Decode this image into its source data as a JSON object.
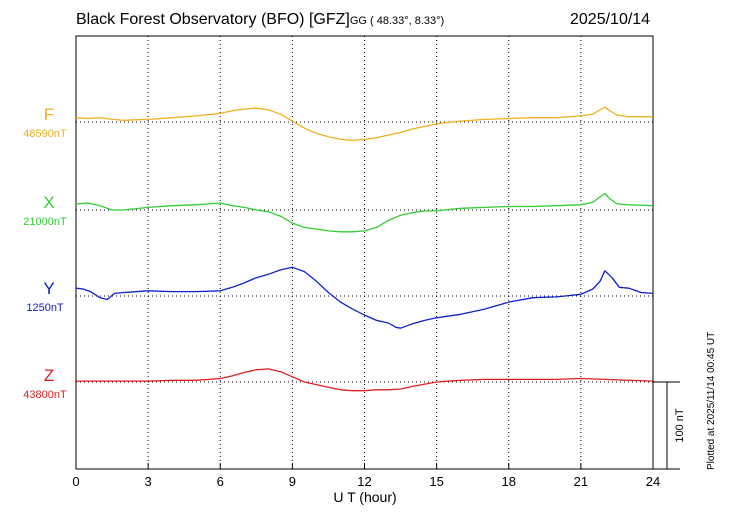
{
  "header": {
    "title": "Black Forest Observatory (BFO)  [GFZ]",
    "coords": "GG ( 48.33°,   8.33°)",
    "date": "2025/10/14"
  },
  "footer": {
    "plotted_note": "Plotted at 2025/11/14 00:45 UT",
    "scale_label": "100 nT"
  },
  "chart_data": {
    "type": "line",
    "xlabel": "U T (hour)",
    "xlim": [
      0,
      24
    ],
    "x_ticks": [
      0,
      3,
      6,
      9,
      12,
      15,
      18,
      21,
      24
    ],
    "scale_bar_nT": 100,
    "grid": true,
    "series": [
      {
        "name": "F",
        "baseline_label": "48590nT",
        "baseline": 48590,
        "color": "#f0b020",
        "x": [
          0,
          0.5,
          1,
          1.5,
          2,
          3,
          4,
          5,
          6,
          6.5,
          7,
          7.5,
          8,
          8.5,
          9,
          9.5,
          10,
          10.5,
          11,
          11.5,
          12,
          12.5,
          13,
          13.5,
          14,
          15,
          16,
          17,
          18,
          19,
          20,
          21,
          21.5,
          21.8,
          22,
          22.2,
          22.5,
          23,
          24
        ],
        "values": [
          48595,
          48594,
          48595,
          48593,
          48592,
          48593,
          48595,
          48597,
          48600,
          48603,
          48605,
          48606,
          48604,
          48599,
          48591,
          48583,
          48577,
          48573,
          48570,
          48569,
          48570,
          48572,
          48575,
          48578,
          48582,
          48588,
          48591,
          48593,
          48594,
          48595,
          48595,
          48597,
          48599,
          48604,
          48607,
          48603,
          48598,
          48596,
          48596
        ]
      },
      {
        "name": "X",
        "baseline_label": "21000nT",
        "baseline": 21000,
        "color": "#33cc33",
        "x": [
          0,
          0.5,
          1,
          1.5,
          2,
          3,
          4,
          5,
          6,
          6.5,
          7,
          7.5,
          8,
          8.5,
          9,
          9.5,
          10,
          10.5,
          11,
          11.5,
          12,
          12.5,
          13,
          13.5,
          14,
          14.5,
          15,
          16,
          17,
          18,
          19,
          20,
          21,
          21.5,
          21.8,
          22,
          22.2,
          22.5,
          23,
          24
        ],
        "values": [
          21007,
          21008,
          21005,
          21000,
          21000,
          21003,
          21005,
          21006,
          21008,
          21005,
          21003,
          21000,
          20998,
          20993,
          20985,
          20980,
          20978,
          20976,
          20975,
          20975,
          20976,
          20980,
          20988,
          20994,
          20997,
          20999,
          20999,
          21002,
          21003,
          21004,
          21004,
          21005,
          21006,
          21009,
          21015,
          21019,
          21013,
          21007,
          21006,
          21005
        ]
      },
      {
        "name": "Y",
        "baseline_label": "1250nT",
        "baseline": 1250,
        "color": "#1020cc",
        "x": [
          0,
          0.3,
          0.6,
          1,
          1.3,
          1.6,
          2,
          3,
          4,
          5,
          6,
          6.5,
          7,
          7.5,
          8,
          8.5,
          9,
          9.5,
          10,
          10.5,
          11,
          11.5,
          12,
          12.5,
          13,
          13.3,
          13.5,
          14,
          14.5,
          15,
          16,
          17,
          18,
          19,
          20,
          21,
          21.5,
          21.8,
          22,
          22.3,
          22.6,
          23,
          23.5,
          24
        ],
        "values": [
          1259,
          1258,
          1255,
          1248,
          1246,
          1253,
          1254,
          1256,
          1255,
          1255,
          1256,
          1260,
          1265,
          1271,
          1275,
          1280,
          1283,
          1278,
          1267,
          1254,
          1243,
          1235,
          1228,
          1222,
          1219,
          1214,
          1213,
          1218,
          1222,
          1225,
          1229,
          1235,
          1243,
          1248,
          1249,
          1252,
          1258,
          1267,
          1279,
          1271,
          1260,
          1259,
          1254,
          1253
        ]
      },
      {
        "name": "Z",
        "baseline_label": "43800nT",
        "baseline": 43800,
        "color": "#e02020",
        "x": [
          0,
          1,
          2,
          3,
          4,
          5,
          6,
          6.5,
          7,
          7.5,
          8,
          8.5,
          9,
          9.5,
          10,
          10.5,
          11,
          11.5,
          12,
          12.5,
          13,
          13.5,
          14,
          15,
          16,
          17,
          18,
          19,
          20,
          21,
          22,
          23,
          24
        ],
        "values": [
          43801,
          43801,
          43801,
          43801,
          43802,
          43802,
          43804,
          43807,
          43811,
          43814,
          43815,
          43812,
          43806,
          43800,
          43797,
          43794,
          43791,
          43790,
          43790,
          43791,
          43791,
          43792,
          43795,
          43800,
          43802,
          43803,
          43803,
          43803,
          43803,
          43804,
          43803,
          43802,
          43801
        ]
      }
    ]
  }
}
